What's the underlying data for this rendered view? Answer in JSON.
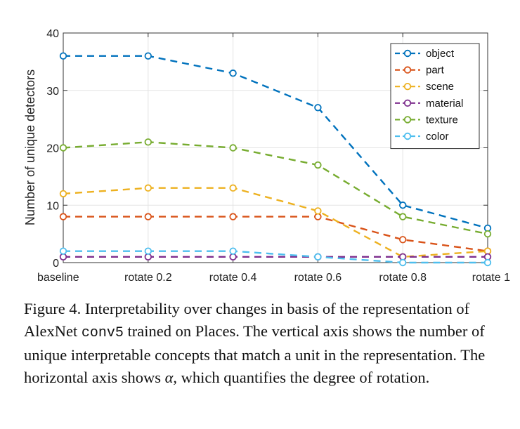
{
  "chart_data": {
    "type": "line",
    "categories": [
      "baseline",
      "rotate 0.2",
      "rotate 0.4",
      "rotate 0.6",
      "rotate 0.8",
      "rotate 1"
    ],
    "ylabel": "Number of unique detectors",
    "ylim": [
      0,
      40
    ],
    "yticks": [
      0,
      10,
      20,
      30,
      40
    ],
    "grid": true,
    "legend_position": "top-right",
    "series": [
      {
        "name": "object",
        "color": "#0072BD",
        "values": [
          36,
          36,
          33,
          27,
          10,
          6
        ]
      },
      {
        "name": "part",
        "color": "#D95319",
        "values": [
          8,
          8,
          8,
          8,
          4,
          2
        ]
      },
      {
        "name": "scene",
        "color": "#EDB120",
        "values": [
          12,
          13,
          13,
          9,
          1,
          2
        ]
      },
      {
        "name": "material",
        "color": "#7E2F8E",
        "values": [
          1,
          1,
          1,
          1,
          1,
          1
        ]
      },
      {
        "name": "texture",
        "color": "#77AC30",
        "values": [
          20,
          21,
          20,
          17,
          8,
          5
        ]
      },
      {
        "name": "color",
        "color": "#4DBEEE",
        "values": [
          2,
          2,
          2,
          1,
          0,
          0
        ]
      }
    ]
  },
  "caption": {
    "part1": "Figure 4. Interpretability over changes in basis of the representation of AlexNet ",
    "code": "conv5",
    "part2": " trained on Places. The vertical axis shows the number of unique interpretable concepts that match a unit in the representation. The horizontal axis shows ",
    "symbol": "α",
    "part3": ", which quantifies the degree of rotation."
  }
}
